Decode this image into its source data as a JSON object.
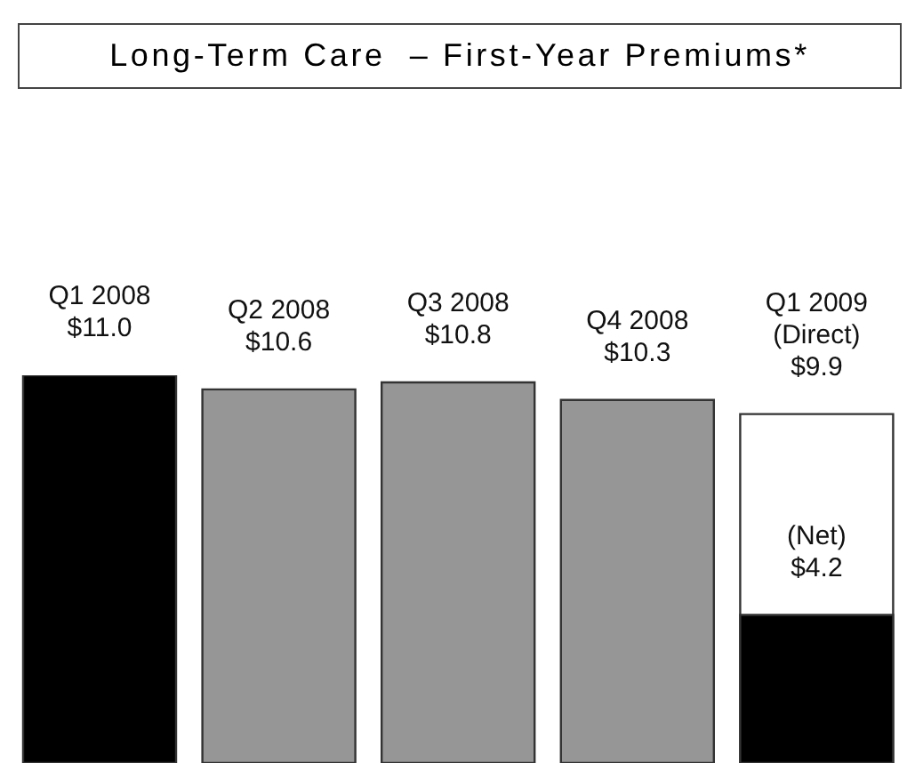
{
  "chart_data": {
    "type": "bar",
    "title": "Long-Term Care  – First-Year Premiums*",
    "categories": [
      "Q1 2008",
      "Q2 2008",
      "Q3 2008",
      "Q4 2008",
      "Q1 2009"
    ],
    "series": [
      {
        "colors": [
          "#000000",
          "#969696",
          "#969696",
          "#969696",
          "#ffffff"
        ],
        "values": [
          11.0,
          10.6,
          10.8,
          10.3,
          9.9
        ],
        "value_labels": [
          "$11.0",
          "$10.6",
          "$10.8",
          "$10.3",
          "$9.9"
        ]
      },
      {
        "color": "#000000",
        "values": [
          null,
          null,
          null,
          null,
          4.2
        ],
        "value_labels": [
          null,
          null,
          null,
          null,
          "$4.2"
        ]
      }
    ],
    "annotations": [
      {
        "text": "(Direct)",
        "x": "Q1 2009",
        "y": 9.9
      },
      {
        "text": "(Net)",
        "x": "Q1 2009",
        "y": 4.2
      }
    ]
  }
}
